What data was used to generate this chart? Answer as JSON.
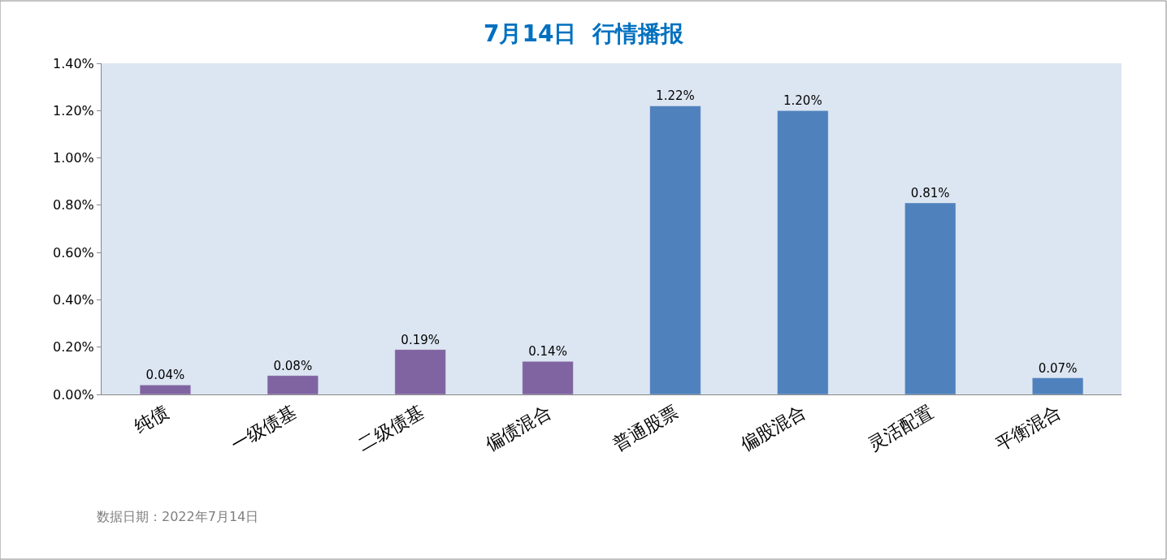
{
  "chart_data": {
    "type": "bar",
    "title": "7月14日  行情播报",
    "categories": [
      "纯债",
      "一级债基",
      "二级债基",
      "偏债混合",
      "普通股票",
      "偏股混合",
      "灵活配置",
      "平衡混合"
    ],
    "values": [
      0.04,
      0.08,
      0.19,
      0.14,
      1.22,
      1.2,
      0.81,
      0.07
    ],
    "value_labels": [
      "0.04%",
      "0.08%",
      "0.19%",
      "0.14%",
      "1.22%",
      "1.20%",
      "0.81%",
      "0.07%"
    ],
    "colors": [
      "#8064a2",
      "#8064a2",
      "#8064a2",
      "#8064a2",
      "#4f81bd",
      "#4f81bd",
      "#4f81bd",
      "#4f81bd"
    ],
    "ylim": [
      0,
      1.4
    ],
    "yticks": [
      {
        "value": 0,
        "label": "0.00%"
      },
      {
        "value": 0.2,
        "label": "0.20%"
      },
      {
        "value": 0.4,
        "label": "0.40%"
      },
      {
        "value": 0.6,
        "label": "0.60%"
      },
      {
        "value": 0.8,
        "label": "0.80%"
      },
      {
        "value": 1.0,
        "label": "1.00%"
      },
      {
        "value": 1.2,
        "label": "1.20%"
      },
      {
        "value": 1.4,
        "label": "1.40%"
      }
    ],
    "grid": false,
    "legend": false,
    "annotations": [
      "数据日期：2022年7月14日"
    ]
  }
}
